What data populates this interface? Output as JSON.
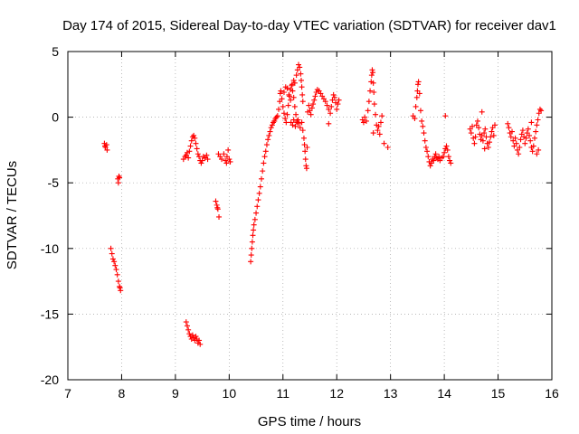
{
  "chart_data": {
    "type": "scatter",
    "title": "Day 174 of 2015, Sidereal Day-to-day VTEC variation (SDTVAR) for receiver dav1",
    "xlabel": "GPS time / hours",
    "ylabel": "SDTVAR / TECUs",
    "xlim": [
      7,
      16
    ],
    "ylim": [
      -20,
      5
    ],
    "xticks": [
      7,
      8,
      9,
      10,
      11,
      12,
      13,
      14,
      15,
      16
    ],
    "yticks": [
      -20,
      -15,
      -10,
      -5,
      0,
      5
    ],
    "grid": true,
    "marker": "+",
    "point_color": "#ff0000",
    "series": [
      {
        "name": "dav1",
        "points": [
          [
            7.68,
            -2.0
          ],
          [
            7.7,
            -2.3
          ],
          [
            7.72,
            -2.1
          ],
          [
            7.73,
            -2.5
          ],
          [
            7.69,
            -2.2
          ],
          [
            7.8,
            -10.0
          ],
          [
            7.82,
            -10.4
          ],
          [
            7.84,
            -10.8
          ],
          [
            7.86,
            -11.0
          ],
          [
            7.88,
            -11.3
          ],
          [
            7.9,
            -11.6
          ],
          [
            7.92,
            -12.0
          ],
          [
            7.94,
            -12.5
          ],
          [
            7.96,
            -12.9
          ],
          [
            7.98,
            -13.2
          ],
          [
            7.97,
            -13.0
          ],
          [
            7.93,
            -4.7
          ],
          [
            7.95,
            -4.5
          ],
          [
            7.94,
            -5.0
          ],
          [
            7.96,
            -4.6
          ],
          [
            9.2,
            -15.6
          ],
          [
            9.22,
            -15.9
          ],
          [
            9.24,
            -16.2
          ],
          [
            9.26,
            -16.5
          ],
          [
            9.28,
            -16.7
          ],
          [
            9.3,
            -16.9
          ],
          [
            9.32,
            -16.6
          ],
          [
            9.34,
            -16.8
          ],
          [
            9.36,
            -17.0
          ],
          [
            9.38,
            -16.7
          ],
          [
            9.4,
            -16.9
          ],
          [
            9.42,
            -17.2
          ],
          [
            9.44,
            -17.0
          ],
          [
            9.46,
            -17.3
          ],
          [
            9.15,
            -3.2
          ],
          [
            9.18,
            -3.0
          ],
          [
            9.2,
            -2.9
          ],
          [
            9.22,
            -2.7
          ],
          [
            9.24,
            -3.1
          ],
          [
            9.26,
            -2.6
          ],
          [
            9.28,
            -2.2
          ],
          [
            9.3,
            -1.8
          ],
          [
            9.32,
            -1.5
          ],
          [
            9.34,
            -1.4
          ],
          [
            9.36,
            -1.6
          ],
          [
            9.38,
            -2.0
          ],
          [
            9.4,
            -2.4
          ],
          [
            9.42,
            -2.8
          ],
          [
            9.44,
            -3.0
          ],
          [
            9.46,
            -3.3
          ],
          [
            9.48,
            -3.5
          ],
          [
            9.5,
            -3.3
          ],
          [
            9.52,
            -3.0
          ],
          [
            9.55,
            -3.1
          ],
          [
            9.58,
            -2.9
          ],
          [
            9.6,
            -3.2
          ],
          [
            9.75,
            -6.4
          ],
          [
            9.77,
            -6.7
          ],
          [
            9.79,
            -7.0
          ],
          [
            9.81,
            -7.6
          ],
          [
            9.78,
            -6.9
          ],
          [
            9.8,
            -2.8
          ],
          [
            9.83,
            -3.0
          ],
          [
            9.86,
            -3.2
          ],
          [
            9.9,
            -2.8
          ],
          [
            9.93,
            -3.3
          ],
          [
            9.96,
            -3.0
          ],
          [
            9.98,
            -2.5
          ],
          [
            10.0,
            -3.2
          ],
          [
            10.02,
            -3.4
          ],
          [
            9.95,
            -3.5
          ],
          [
            10.4,
            -11.0
          ],
          [
            10.41,
            -10.5
          ],
          [
            10.42,
            -10.0
          ],
          [
            10.43,
            -9.5
          ],
          [
            10.44,
            -9.0
          ],
          [
            10.45,
            -8.6
          ],
          [
            10.46,
            -8.2
          ],
          [
            10.48,
            -7.8
          ],
          [
            10.5,
            -7.3
          ],
          [
            10.52,
            -6.8
          ],
          [
            10.54,
            -6.3
          ],
          [
            10.56,
            -5.8
          ],
          [
            10.58,
            -5.3
          ],
          [
            10.6,
            -4.7
          ],
          [
            10.62,
            -4.1
          ],
          [
            10.64,
            -3.5
          ],
          [
            10.66,
            -3.0
          ],
          [
            10.68,
            -2.6
          ],
          [
            10.7,
            -2.1
          ],
          [
            10.72,
            -1.7
          ],
          [
            10.74,
            -1.4
          ],
          [
            10.76,
            -1.1
          ],
          [
            10.78,
            -0.8
          ],
          [
            10.8,
            -0.6
          ],
          [
            10.82,
            -0.4
          ],
          [
            10.84,
            -0.3
          ],
          [
            10.86,
            -0.1
          ],
          [
            10.88,
            0.0
          ],
          [
            10.9,
            0.1
          ],
          [
            10.92,
            0.6
          ],
          [
            10.94,
            1.2
          ],
          [
            10.95,
            1.8
          ],
          [
            10.96,
            2.0
          ],
          [
            10.98,
            1.4
          ],
          [
            11.0,
            0.8
          ],
          [
            11.02,
            0.3
          ],
          [
            11.04,
            -0.1
          ],
          [
            11.06,
            -0.4
          ],
          [
            11.08,
            0.2
          ],
          [
            11.1,
            0.9
          ],
          [
            11.12,
            1.6
          ],
          [
            11.14,
            2.1
          ],
          [
            11.16,
            2.4
          ],
          [
            11.18,
            2.0
          ],
          [
            11.2,
            1.5
          ],
          [
            11.22,
            0.8
          ],
          [
            11.24,
            0.2
          ],
          [
            11.26,
            -0.4
          ],
          [
            11.28,
            -0.2
          ],
          [
            11.02,
            1.9
          ],
          [
            11.05,
            2.3
          ],
          [
            11.08,
            2.2
          ],
          [
            11.11,
            1.7
          ],
          [
            11.14,
            1.3
          ],
          [
            11.17,
            2.5
          ],
          [
            11.2,
            2.8
          ],
          [
            11.22,
            2.6
          ],
          [
            11.25,
            3.2
          ],
          [
            11.27,
            3.6
          ],
          [
            11.29,
            4.0
          ],
          [
            11.31,
            3.8
          ],
          [
            11.33,
            3.3
          ],
          [
            11.34,
            2.8
          ],
          [
            11.35,
            2.3
          ],
          [
            11.36,
            1.7
          ],
          [
            11.37,
            1.2
          ],
          [
            11.15,
            -0.4
          ],
          [
            11.18,
            -0.6
          ],
          [
            11.2,
            -0.2
          ],
          [
            11.23,
            -0.7
          ],
          [
            11.26,
            -0.3
          ],
          [
            11.29,
            -0.5
          ],
          [
            11.32,
            -0.8
          ],
          [
            11.35,
            -0.4
          ],
          [
            11.37,
            -1.0
          ],
          [
            11.39,
            -1.6
          ],
          [
            11.4,
            -2.1
          ],
          [
            11.41,
            -2.6
          ],
          [
            11.42,
            -3.2
          ],
          [
            11.43,
            -3.7
          ],
          [
            11.44,
            -3.9
          ],
          [
            11.45,
            -2.3
          ],
          [
            11.46,
            0.4
          ],
          [
            11.48,
            0.9
          ],
          [
            11.5,
            0.5
          ],
          [
            11.52,
            0.2
          ],
          [
            11.54,
            0.7
          ],
          [
            11.56,
            1.0
          ],
          [
            11.58,
            1.3
          ],
          [
            11.6,
            1.6
          ],
          [
            11.62,
            1.9
          ],
          [
            11.64,
            2.1
          ],
          [
            11.67,
            2.0
          ],
          [
            11.7,
            1.8
          ],
          [
            11.73,
            1.6
          ],
          [
            11.76,
            1.4
          ],
          [
            11.79,
            1.2
          ],
          [
            11.82,
            0.9
          ],
          [
            11.85,
            0.6
          ],
          [
            11.88,
            0.3
          ],
          [
            11.9,
            0.8
          ],
          [
            11.92,
            1.3
          ],
          [
            11.94,
            1.7
          ],
          [
            11.96,
            1.5
          ],
          [
            11.98,
            1.1
          ],
          [
            12.0,
            0.6
          ],
          [
            12.02,
            1.0
          ],
          [
            12.04,
            1.3
          ],
          [
            11.85,
            -0.5
          ],
          [
            12.48,
            -0.2
          ],
          [
            12.5,
            -0.4
          ],
          [
            12.52,
            0.0
          ],
          [
            12.55,
            -0.3
          ],
          [
            12.58,
            0.5
          ],
          [
            12.6,
            1.2
          ],
          [
            12.62,
            2.0
          ],
          [
            12.64,
            2.7
          ],
          [
            12.65,
            3.2
          ],
          [
            12.66,
            3.6
          ],
          [
            12.67,
            3.4
          ],
          [
            12.68,
            2.6
          ],
          [
            12.69,
            1.9
          ],
          [
            12.7,
            1.0
          ],
          [
            12.72,
            0.2
          ],
          [
            12.74,
            -0.6
          ],
          [
            12.76,
            -1.0
          ],
          [
            12.78,
            -0.7
          ],
          [
            12.8,
            -1.3
          ],
          [
            12.82,
            -0.4
          ],
          [
            12.84,
            0.1
          ],
          [
            12.68,
            -1.2
          ],
          [
            12.88,
            -2.0
          ],
          [
            12.95,
            -2.3
          ],
          [
            13.42,
            0.1
          ],
          [
            13.45,
            -0.1
          ],
          [
            13.47,
            0.8
          ],
          [
            13.49,
            1.5
          ],
          [
            13.5,
            2.0
          ],
          [
            13.51,
            2.5
          ],
          [
            13.52,
            2.7
          ],
          [
            13.54,
            1.8
          ],
          [
            13.56,
            0.5
          ],
          [
            13.58,
            -0.3
          ],
          [
            13.6,
            -0.7
          ],
          [
            13.62,
            -1.2
          ],
          [
            13.64,
            -1.8
          ],
          [
            13.66,
            -2.3
          ],
          [
            13.68,
            -2.6
          ],
          [
            13.7,
            -3.0
          ],
          [
            13.72,
            -3.4
          ],
          [
            13.74,
            -3.7
          ],
          [
            13.76,
            -3.5
          ],
          [
            13.78,
            -3.2
          ],
          [
            13.8,
            -3.3
          ],
          [
            13.82,
            -3.0
          ],
          [
            13.84,
            -2.8
          ],
          [
            13.86,
            -3.1
          ],
          [
            13.88,
            -3.2
          ],
          [
            13.9,
            -3.0
          ],
          [
            13.92,
            -3.3
          ],
          [
            13.95,
            -3.1
          ],
          [
            13.98,
            -3.0
          ],
          [
            14.0,
            -2.7
          ],
          [
            14.02,
            -2.4
          ],
          [
            14.04,
            -2.2
          ],
          [
            14.06,
            -2.5
          ],
          [
            14.08,
            -3.0
          ],
          [
            14.1,
            -3.3
          ],
          [
            14.12,
            -3.5
          ],
          [
            14.02,
            0.1
          ],
          [
            14.48,
            -0.9
          ],
          [
            14.5,
            -1.2
          ],
          [
            14.52,
            -0.7
          ],
          [
            14.54,
            -1.6
          ],
          [
            14.56,
            -2.0
          ],
          [
            14.58,
            -1.5
          ],
          [
            14.6,
            -0.6
          ],
          [
            14.62,
            -0.3
          ],
          [
            14.64,
            -0.8
          ],
          [
            14.66,
            -1.3
          ],
          [
            14.68,
            -1.7
          ],
          [
            14.7,
            -1.4
          ],
          [
            14.72,
            -1.8
          ],
          [
            14.74,
            -1.2
          ],
          [
            14.76,
            -0.9
          ],
          [
            14.78,
            -1.5
          ],
          [
            14.8,
            -2.0
          ],
          [
            14.82,
            -2.3
          ],
          [
            14.84,
            -1.9
          ],
          [
            14.86,
            -1.5
          ],
          [
            14.88,
            -1.1
          ],
          [
            14.9,
            -0.8
          ],
          [
            14.92,
            -1.4
          ],
          [
            14.94,
            -0.6
          ],
          [
            14.7,
            0.4
          ],
          [
            14.75,
            -2.4
          ],
          [
            15.18,
            -0.5
          ],
          [
            15.2,
            -0.8
          ],
          [
            15.22,
            -1.2
          ],
          [
            15.24,
            -1.5
          ],
          [
            15.26,
            -1.1
          ],
          [
            15.28,
            -1.8
          ],
          [
            15.3,
            -2.2
          ],
          [
            15.32,
            -1.6
          ],
          [
            15.34,
            -2.0
          ],
          [
            15.36,
            -2.5
          ],
          [
            15.38,
            -2.8
          ],
          [
            15.4,
            -2.3
          ],
          [
            15.42,
            -1.7
          ],
          [
            15.44,
            -1.3
          ],
          [
            15.46,
            -1.0
          ],
          [
            15.48,
            -1.5
          ],
          [
            15.5,
            -2.0
          ],
          [
            15.52,
            -1.6
          ],
          [
            15.54,
            -1.2
          ],
          [
            15.56,
            -0.9
          ],
          [
            15.58,
            -1.4
          ],
          [
            15.6,
            -1.8
          ],
          [
            15.62,
            -2.3
          ],
          [
            15.64,
            -2.6
          ],
          [
            15.66,
            -2.2
          ],
          [
            15.68,
            -1.6
          ],
          [
            15.7,
            -1.1
          ],
          [
            15.72,
            -0.6
          ],
          [
            15.74,
            -0.2
          ],
          [
            15.76,
            0.3
          ],
          [
            15.78,
            0.6
          ],
          [
            15.8,
            0.5
          ],
          [
            15.62,
            -0.4
          ],
          [
            15.72,
            -2.8
          ],
          [
            15.75,
            -2.5
          ]
        ]
      }
    ]
  }
}
